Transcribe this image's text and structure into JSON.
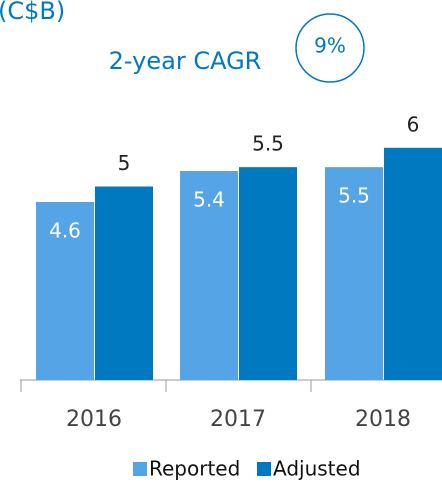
{
  "chart_data": {
    "type": "bar",
    "title": "(C$B)",
    "subtitle": "2-year CAGR",
    "cagr": "9%",
    "categories": [
      "2016",
      "2017",
      "2018"
    ],
    "series": [
      {
        "name": "Reported",
        "color": "#55a4e6",
        "values": [
          4.6,
          5.4,
          5.5
        ]
      },
      {
        "name": "Adjusted",
        "color": "#0079c1",
        "values": [
          5.0,
          5.5,
          6.0
        ]
      }
    ]
  }
}
